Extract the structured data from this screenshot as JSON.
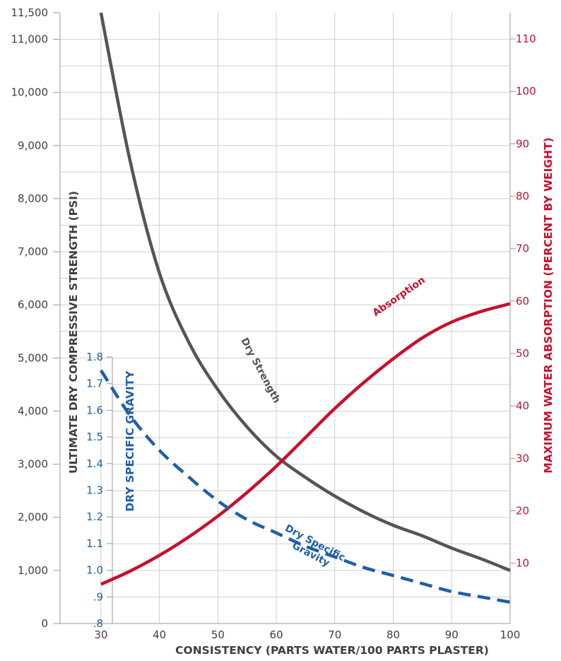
{
  "chart_data": {
    "type": "line",
    "xlabel": "CONSISTENCY (PARTS WATER/100 PARTS PLASTER)",
    "x_ticks": [
      "30",
      "40",
      "50",
      "60",
      "70",
      "80",
      "90",
      "100"
    ],
    "xlim": [
      23,
      100
    ],
    "left_axis": {
      "label": "ULTIMATE DRY COMPRESSIVE STRENGTH (PSI)",
      "ticks": [
        "0",
        "1,000",
        "2,000",
        "3,000",
        "4,000",
        "5,000",
        "6,000",
        "7,000",
        "8,000",
        "9,000",
        "10,000",
        "11,000",
        "11,500"
      ],
      "ylim": [
        0,
        11500
      ],
      "color": "#3f3f3f"
    },
    "right_axis": {
      "label": "MAXIMUM WATER ABSORPTION (PERCENT BY WEIGHT)",
      "ticks": [
        "10",
        "20",
        "30",
        "40",
        "50",
        "60",
        "70",
        "80",
        "90",
        "100",
        "110"
      ],
      "ylim": [
        -1.5,
        115
      ],
      "color": "#c8102e"
    },
    "inner_axis": {
      "label": "DRY SPECIFIC GRAVITY",
      "ticks": [
        ".8",
        ".9",
        "1.0",
        "1.1",
        "1.2",
        "1.3",
        "1.4",
        "1.5",
        "1.6",
        "1.7",
        "1.8"
      ],
      "ylim": [
        0.8,
        1.8
      ],
      "color": "#1f5fa8"
    },
    "series": [
      {
        "name": "Dry Strength",
        "axis": "left",
        "color": "#555555",
        "x": [
          30,
          35,
          40,
          45,
          50,
          55,
          60,
          65,
          70,
          75,
          80,
          85,
          90,
          95,
          100
        ],
        "y": [
          11500,
          8700,
          6600,
          5300,
          4400,
          3700,
          3150,
          2750,
          2400,
          2100,
          1850,
          1650,
          1420,
          1220,
          1000
        ]
      },
      {
        "name": "Absorption",
        "axis": "right",
        "color": "#c8102e",
        "x": [
          30,
          35,
          40,
          45,
          50,
          55,
          60,
          65,
          70,
          75,
          80,
          85,
          90,
          95,
          100
        ],
        "y": [
          6,
          8.5,
          11.5,
          15,
          19,
          23.5,
          28.5,
          34,
          39.5,
          44.5,
          49,
          53,
          56,
          58,
          59.5
        ]
      },
      {
        "name": "Dry Specific Gravity",
        "axis": "inner",
        "color": "#1f5fa8",
        "x": [
          30,
          35,
          40,
          45,
          50,
          55,
          60,
          65,
          70,
          75,
          80,
          85,
          90,
          95,
          100
        ],
        "y": [
          1.75,
          1.58,
          1.45,
          1.35,
          1.26,
          1.19,
          1.14,
          1.09,
          1.05,
          1.01,
          0.98,
          0.95,
          0.92,
          0.9,
          0.88
        ]
      }
    ]
  }
}
